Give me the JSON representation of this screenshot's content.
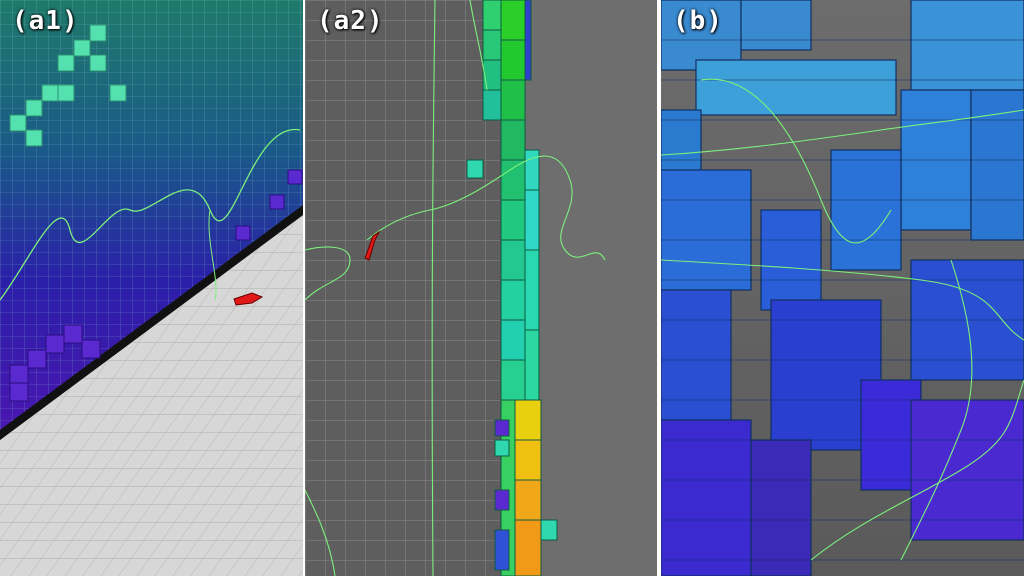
{
  "panels": [
    {
      "id": "a1",
      "label": "(a1)"
    },
    {
      "id": "a2",
      "label": "(a2)"
    },
    {
      "id": "b",
      "label": "(b)"
    }
  ],
  "colors": {
    "separator": "#ffffff",
    "background_grey": "#6b6b6b",
    "floor_light": "#d7d7d7",
    "trajectory": "#7cf07c",
    "arrow": "#e01818",
    "voxel_blue": "#2a6fd8",
    "voxel_violet": "#4b2ad0",
    "voxel_green": "#1dd070",
    "voxel_yellow": "#e8d010",
    "voxel_orange": "#f0a010"
  },
  "icons": [
    "red-pose-arrow-icon"
  ]
}
